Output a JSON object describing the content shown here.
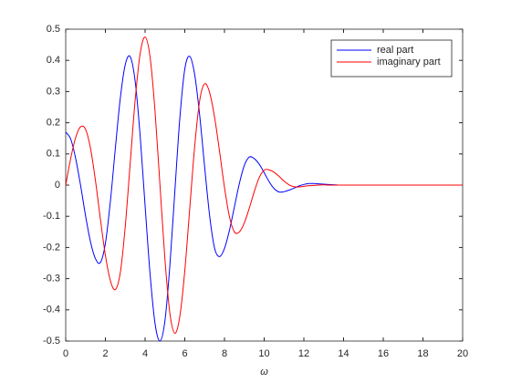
{
  "chart_data": {
    "type": "line",
    "xlabel": "ω",
    "x": [
      0,
      0.25,
      0.5,
      0.75,
      1,
      1.25,
      1.5,
      1.75,
      2,
      2.25,
      2.5,
      2.75,
      3,
      3.25,
      3.5,
      3.75,
      4,
      4.25,
      4.5,
      4.75,
      5,
      5.25,
      5.5,
      5.75,
      6,
      6.25,
      6.5,
      6.75,
      7,
      7.25,
      7.5,
      7.75,
      8,
      8.25,
      8.5,
      8.75,
      9,
      9.25,
      9.5,
      9.75,
      10,
      10.25,
      10.5,
      10.75,
      11,
      11.25,
      11.5,
      11.75,
      12,
      12.25,
      12.5,
      12.75,
      13,
      13.25,
      13.5,
      13.75,
      14,
      16,
      18,
      20
    ],
    "series": [
      {
        "name": "real part",
        "color": "#0000ff",
        "values": [
          0.17,
          0.148,
          0.086,
          -0.001,
          -0.098,
          -0.182,
          -0.236,
          -0.248,
          -0.187,
          -0.053,
          0.117,
          0.278,
          0.386,
          0.412,
          0.333,
          0.159,
          -0.066,
          -0.284,
          -0.443,
          -0.5,
          -0.435,
          -0.257,
          -0.019,
          0.214,
          0.372,
          0.413,
          0.354,
          0.224,
          0.059,
          -0.097,
          -0.202,
          -0.229,
          -0.203,
          -0.145,
          -0.07,
          0.005,
          0.063,
          0.09,
          0.085,
          0.067,
          0.04,
          0.011,
          -0.011,
          -0.022,
          -0.021,
          -0.016,
          -0.01,
          -0.003,
          0.002,
          0.005,
          0.005,
          0.004,
          0.003,
          0.002,
          0.001,
          0,
          0,
          0,
          0,
          0
        ]
      },
      {
        "name": "imaginary part",
        "color": "#ff0000",
        "values": [
          0,
          0.085,
          0.152,
          0.187,
          0.179,
          0.118,
          0.014,
          -0.11,
          -0.225,
          -0.306,
          -0.335,
          -0.281,
          -0.133,
          0.07,
          0.273,
          0.421,
          0.475,
          0.411,
          0.238,
          0,
          -0.238,
          -0.411,
          -0.475,
          -0.421,
          -0.275,
          -0.075,
          0.125,
          0.271,
          0.325,
          0.297,
          0.218,
          0.109,
          -0.007,
          -0.101,
          -0.15,
          -0.15,
          -0.121,
          -0.074,
          -0.021,
          0.024,
          0.048,
          0.049,
          0.041,
          0.028,
          0.013,
          0.001,
          -0.005,
          -0.006,
          -0.004,
          -0.002,
          -0.001,
          0,
          0.001,
          0,
          0,
          0,
          0,
          0,
          0,
          0
        ]
      }
    ],
    "xlim": [
      0,
      20
    ],
    "xticks": [
      0,
      2,
      4,
      6,
      8,
      10,
      12,
      14,
      16,
      18,
      20
    ],
    "ylim": [
      -0.5,
      0.5
    ],
    "yticks": [
      -0.5,
      -0.4,
      -0.3,
      -0.2,
      -0.1,
      0,
      0.1,
      0.2,
      0.3,
      0.4,
      0.5
    ],
    "grid": false,
    "legend": "northeast"
  }
}
